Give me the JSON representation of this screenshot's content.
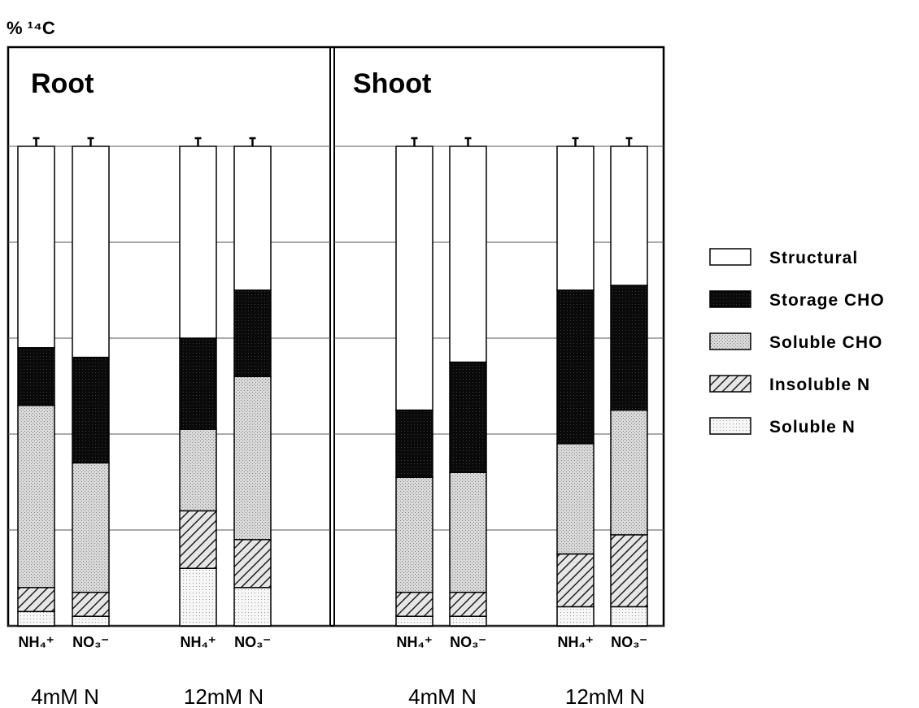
{
  "chart_data": {
    "type": "bar",
    "ylabel": "% ¹⁴C",
    "ylim": [
      0,
      100
    ],
    "grid": true,
    "legend_placement": "right",
    "panels": [
      {
        "title": "Root",
        "categories": [
          "NH₄⁺",
          "NO₃⁻",
          "NH₄⁺",
          "NO₃⁻"
        ],
        "group_labels": [
          "4mM N",
          "12mM N"
        ],
        "series": [
          {
            "name": "Soluble N",
            "values": [
              3,
              2,
              12,
              8
            ]
          },
          {
            "name": "Insoluble N",
            "values": [
              5,
              5,
              12,
              10
            ]
          },
          {
            "name": "Soluble CHO",
            "values": [
              38,
              27,
              17,
              34
            ]
          },
          {
            "name": "Storage CHO",
            "values": [
              12,
              22,
              19,
              18
            ]
          },
          {
            "name": "Structural",
            "values": [
              42,
              44,
              40,
              30
            ]
          }
        ]
      },
      {
        "title": "Shoot",
        "categories": [
          "NH₄⁺",
          "NO₃⁻",
          "NH₄⁺",
          "NO₃⁻"
        ],
        "group_labels": [
          "4mM N",
          "12mM N"
        ],
        "series": [
          {
            "name": "Soluble N",
            "values": [
              2,
              2,
              4,
              4
            ]
          },
          {
            "name": "Insoluble N",
            "values": [
              5,
              5,
              11,
              15
            ]
          },
          {
            "name": "Soluble CHO",
            "values": [
              24,
              25,
              23,
              26
            ]
          },
          {
            "name": "Storage CHO",
            "values": [
              14,
              23,
              32,
              26
            ]
          },
          {
            "name": "Structural",
            "values": [
              55,
              45,
              30,
              29
            ]
          }
        ]
      }
    ],
    "legend": [
      "Structural",
      "Storage CHO",
      "Soluble CHO",
      "Insoluble N",
      "Soluble N"
    ],
    "colors": {
      "Structural": "#ffffff",
      "Storage CHO": "#0a0a0a",
      "Soluble CHO": "#d4d4d4",
      "Insoluble N": "hatch",
      "Soluble N": "#f2f2f2"
    }
  }
}
